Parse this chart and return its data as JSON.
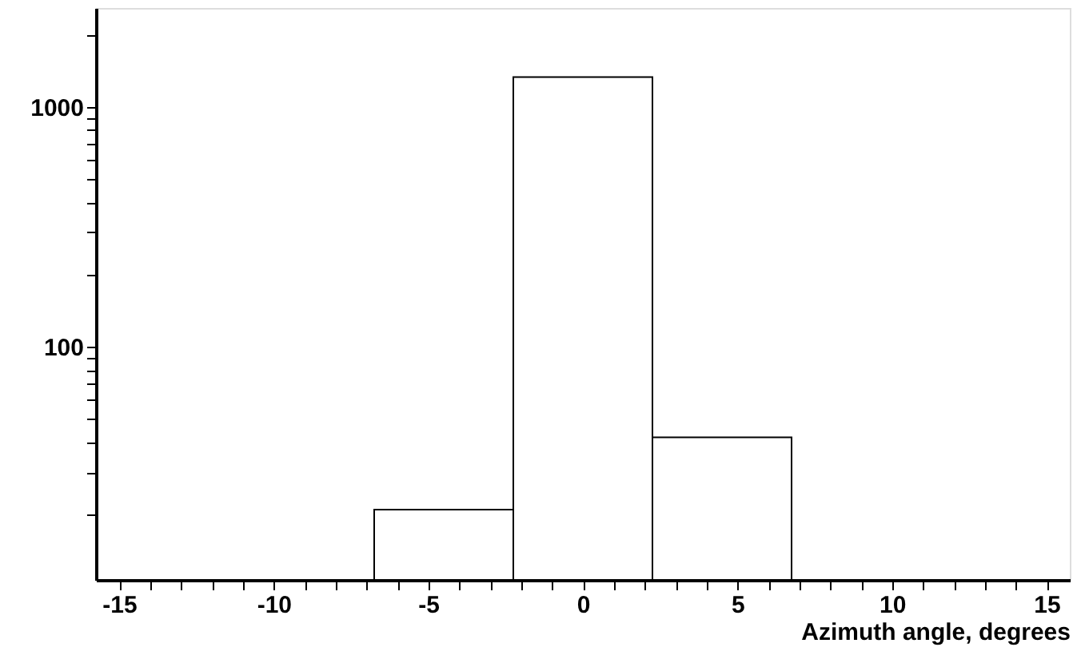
{
  "chart_data": {
    "type": "histogram",
    "xlabel": "Azimuth angle, degrees",
    "bins": [
      -6.75,
      -2.25,
      2.25,
      6.75
    ],
    "values": [
      21,
      1330,
      42
    ],
    "color": "#000000",
    "log": "y",
    "xlim": [
      -15.75,
      15.75
    ],
    "ylim": [
      10.7,
      2580
    ],
    "xticks": [
      -15,
      {
        "value": -14,
        "label": null
      },
      {
        "value": -13,
        "label": null
      },
      {
        "value": -12,
        "label": null
      },
      {
        "value": -11,
        "label": null
      },
      -10,
      {
        "value": -9,
        "label": null
      },
      {
        "value": -8,
        "label": null
      },
      {
        "value": -7,
        "label": null
      },
      {
        "value": -6,
        "label": null
      },
      -5,
      {
        "value": -4,
        "label": null
      },
      {
        "value": -3,
        "label": null
      },
      {
        "value": -2,
        "label": null
      },
      {
        "value": -1,
        "label": null
      },
      0,
      {
        "value": 1,
        "label": null
      },
      {
        "value": 2,
        "label": null
      },
      {
        "value": 3,
        "label": null
      },
      {
        "value": 4,
        "label": null
      },
      5,
      {
        "value": 6,
        "label": null
      },
      {
        "value": 7,
        "label": null
      },
      {
        "value": 8,
        "label": null
      },
      {
        "value": 9,
        "label": null
      },
      10,
      {
        "value": 11,
        "label": null
      },
      {
        "value": 12,
        "label": null
      },
      {
        "value": 13,
        "label": null
      },
      {
        "value": 14,
        "label": null
      },
      15
    ],
    "yticks": [
      {
        "value": 20,
        "label": null
      },
      {
        "value": 30,
        "label": null
      },
      {
        "value": 40,
        "label": null
      },
      {
        "value": 50,
        "label": null
      },
      {
        "value": 60,
        "label": null
      },
      {
        "value": 70,
        "label": null
      },
      {
        "value": 80,
        "label": null
      },
      {
        "value": 90,
        "label": null
      },
      100,
      {
        "value": 200,
        "label": null
      },
      {
        "value": 300,
        "label": null
      },
      {
        "value": 400,
        "label": null
      },
      {
        "value": 500,
        "label": null
      },
      {
        "value": 600,
        "label": null
      },
      {
        "value": 700,
        "label": null
      },
      {
        "value": 800,
        "label": null
      },
      {
        "value": 900,
        "label": null
      },
      1000,
      {
        "value": 2000,
        "label": null
      }
    ],
    "grid": false
  }
}
